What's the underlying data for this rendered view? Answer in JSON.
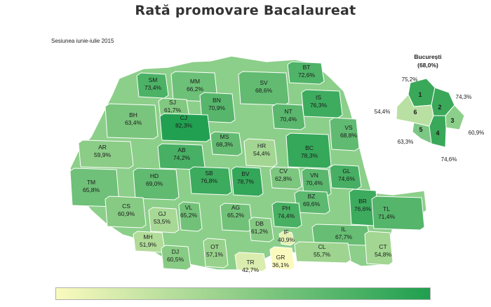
{
  "title": "Rată promovare Bacalaureat",
  "subtitle": "Sesiunea iunie-iulie 2015",
  "bucharest": {
    "name": "București",
    "rate": "(68,0%)",
    "sectors": [
      {
        "id": "1",
        "value": "75,2%"
      },
      {
        "id": "2",
        "value": "74,3%"
      },
      {
        "id": "3",
        "value": "60,9%"
      },
      {
        "id": "4",
        "value": "74,6%"
      },
      {
        "id": "5",
        "value": "63,3%"
      },
      {
        "id": "6",
        "value": "54,4%"
      }
    ]
  },
  "counties": [
    {
      "code": "SM",
      "value": "73,4%"
    },
    {
      "code": "MM",
      "value": "66,2%"
    },
    {
      "code": "BT",
      "value": "72,6%"
    },
    {
      "code": "SV",
      "value": "68,6%"
    },
    {
      "code": "IS",
      "value": "76,3%"
    },
    {
      "code": "SJ",
      "value": "61,7%"
    },
    {
      "code": "BN",
      "value": "70,9%"
    },
    {
      "code": "NT",
      "value": "70,4%"
    },
    {
      "code": "BH",
      "value": "63,4%"
    },
    {
      "code": "CJ",
      "value": "82,3%"
    },
    {
      "code": "HR",
      "value": "54,4%"
    },
    {
      "code": "VS",
      "value": "68,8%"
    },
    {
      "code": "MS",
      "value": "68,3%"
    },
    {
      "code": "BC",
      "value": "78,3%"
    },
    {
      "code": "AR",
      "value": "59,9%"
    },
    {
      "code": "AB",
      "value": "74,2%"
    },
    {
      "code": "CV",
      "value": "62,8%"
    },
    {
      "code": "GL",
      "value": "74,6%"
    },
    {
      "code": "TM",
      "value": "65,8%"
    },
    {
      "code": "HD",
      "value": "69,0%"
    },
    {
      "code": "SB",
      "value": "76,8%"
    },
    {
      "code": "BV",
      "value": "78,7%"
    },
    {
      "code": "VN",
      "value": "70,4%"
    },
    {
      "code": "BZ",
      "value": "69,6%"
    },
    {
      "code": "BR",
      "value": "76,6%"
    },
    {
      "code": "TL",
      "value": "71,4%"
    },
    {
      "code": "CS",
      "value": "60,9%"
    },
    {
      "code": "GJ",
      "value": "53,5%"
    },
    {
      "code": "VL",
      "value": "65,2%"
    },
    {
      "code": "AG",
      "value": "65,2%"
    },
    {
      "code": "DB",
      "value": "61,2%"
    },
    {
      "code": "PH",
      "value": "74,4%"
    },
    {
      "code": "IL",
      "value": "67,7%"
    },
    {
      "code": "MH",
      "value": "51,9%"
    },
    {
      "code": "DJ",
      "value": "60,5%"
    },
    {
      "code": "OT",
      "value": "57,1%"
    },
    {
      "code": "IF",
      "value": "40,9%"
    },
    {
      "code": "CL",
      "value": "55,7%"
    },
    {
      "code": "CT",
      "value": "54,8%"
    },
    {
      "code": "TR",
      "value": "42,7%"
    },
    {
      "code": "GR",
      "value": "36,1%"
    }
  ],
  "legend": {
    "color_low": "#fafabe",
    "color_high": "#1f9f4f"
  },
  "colors": {
    "outline": "#ffffff",
    "title": "#333333"
  }
}
